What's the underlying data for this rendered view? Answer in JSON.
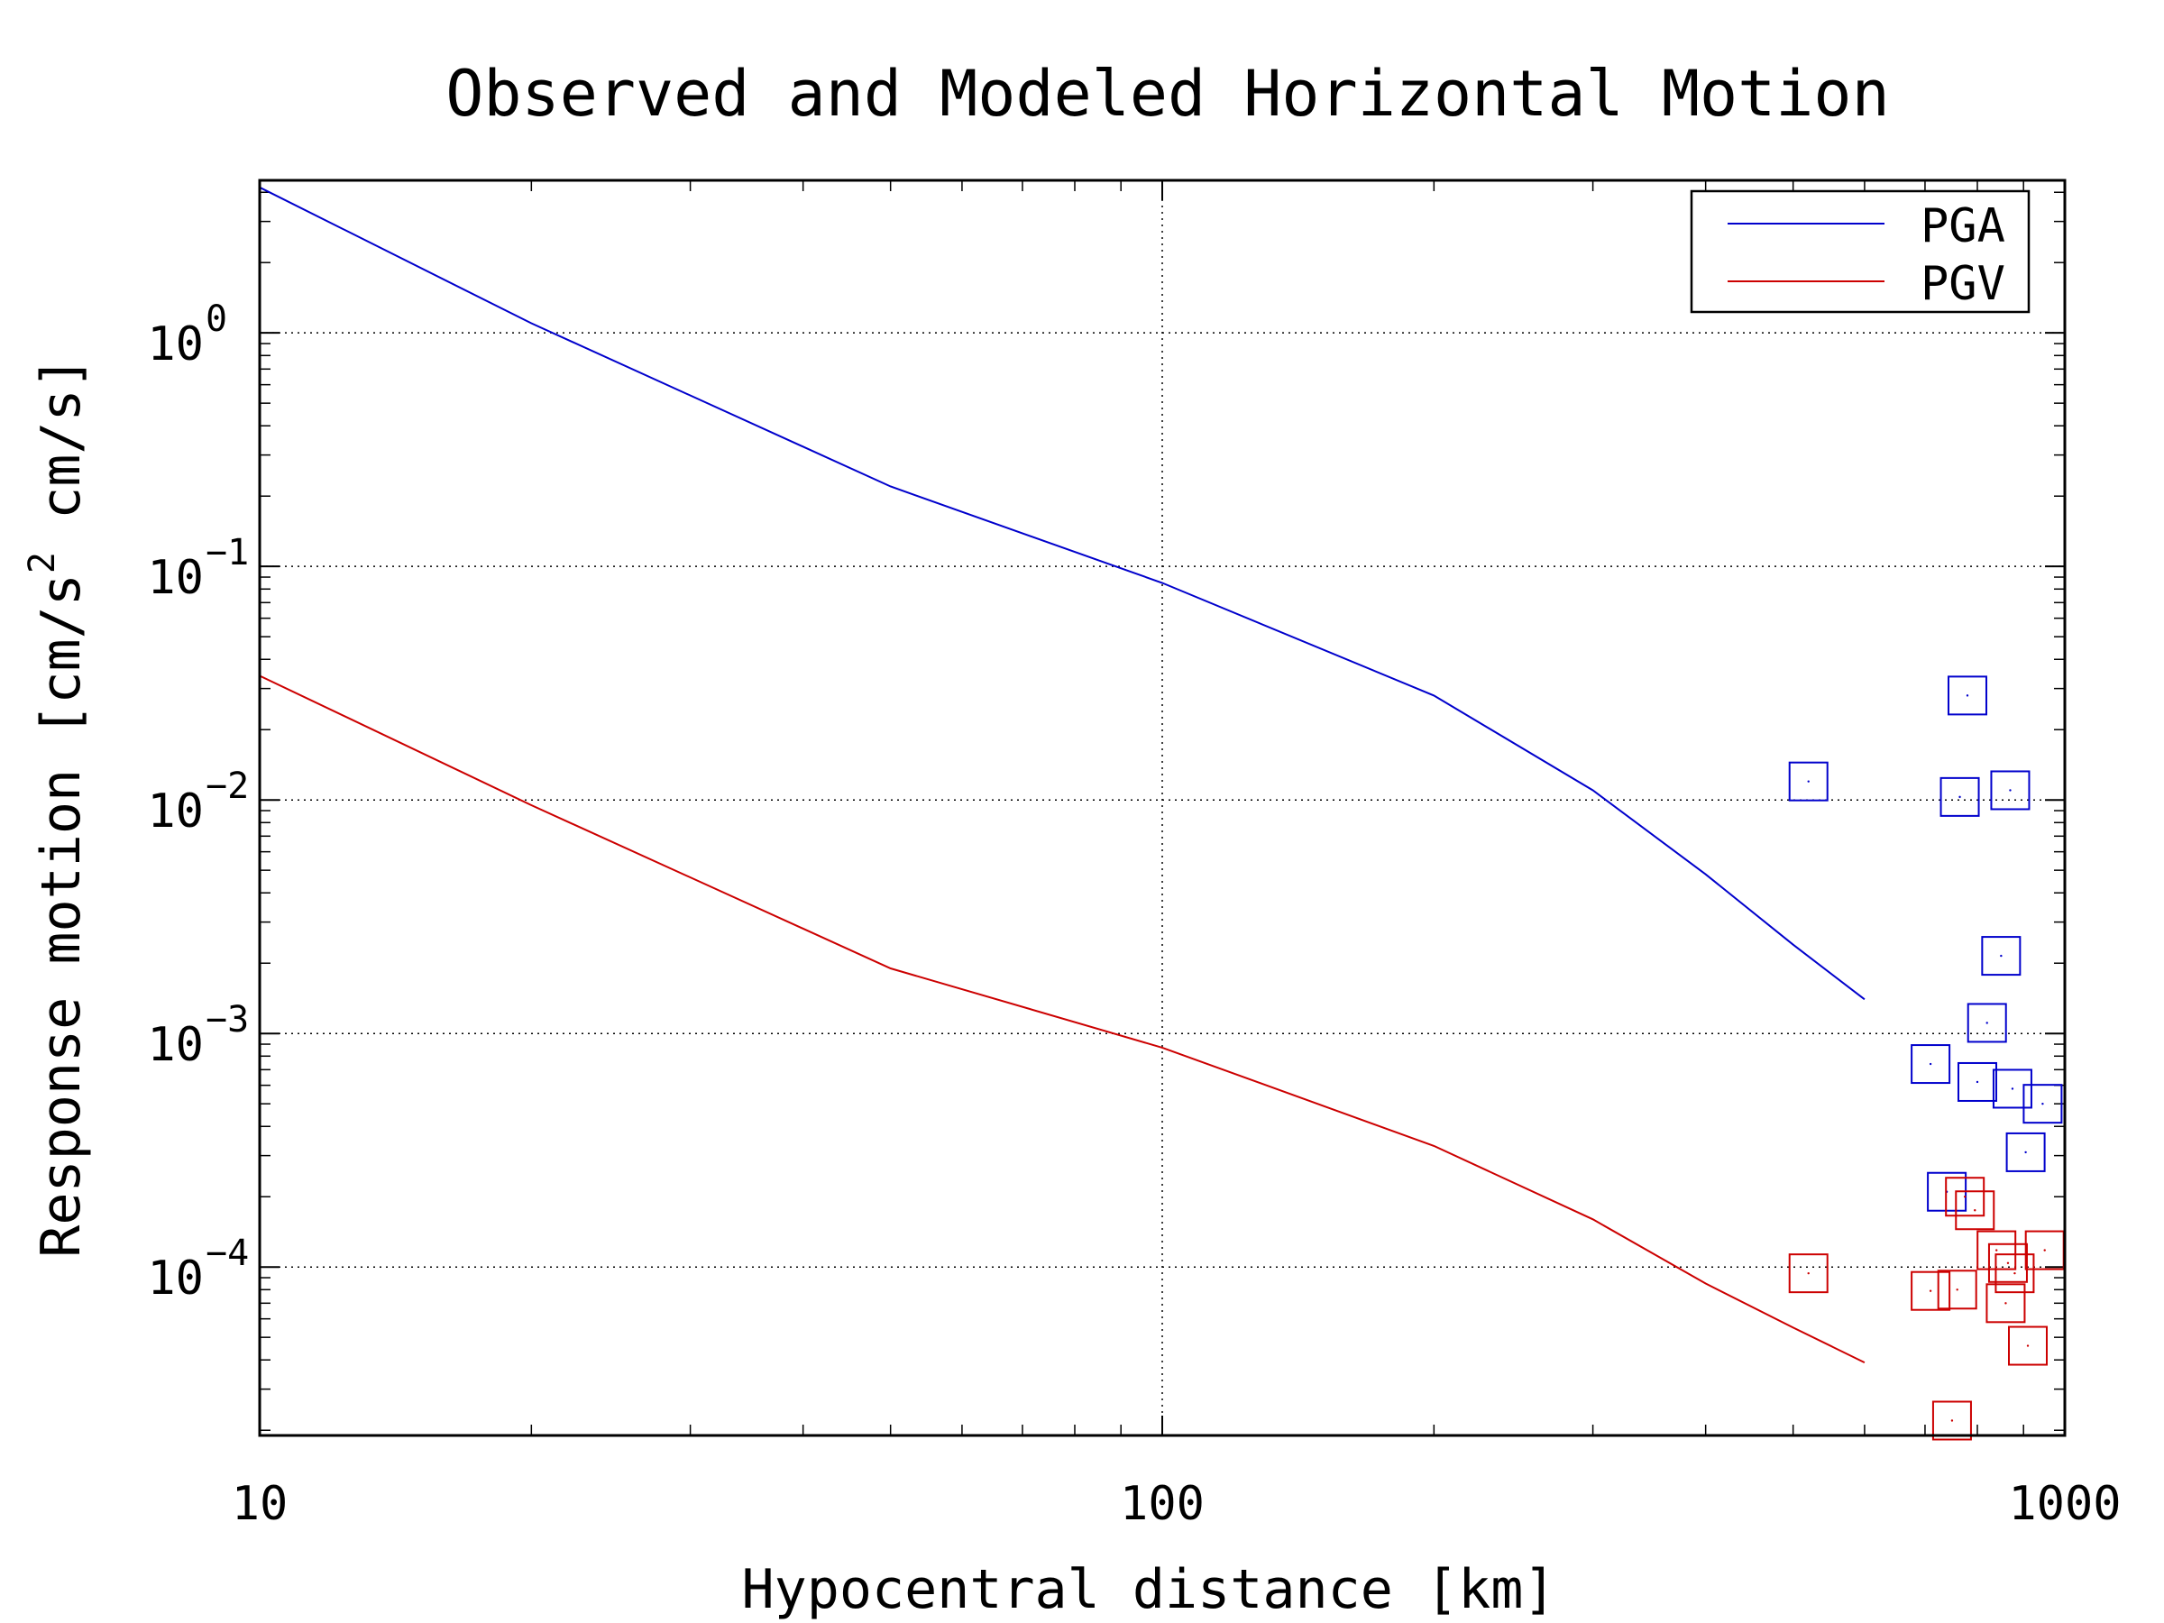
{
  "chart_data": {
    "type": "line",
    "title": "Observed and Modeled Horizontal Motion",
    "xlabel": "Hypocentral distance [km]",
    "ylabel": "Response motion [cm/s² cm/s]",
    "ylabel_parts": {
      "main": "Response motion [cm/s",
      "sup": "2",
      "tail": " cm/s]"
    },
    "x_scale": "log",
    "y_scale": "log",
    "xlim": [
      10,
      1000
    ],
    "ylim": [
      1.9e-05,
      4.5
    ],
    "x_ticks": [
      {
        "value": 10,
        "label": "10"
      },
      {
        "value": 100,
        "label": "100"
      },
      {
        "value": 1000,
        "label": "1000"
      }
    ],
    "y_ticks": [
      {
        "value": 1,
        "base": "10",
        "exp": "0"
      },
      {
        "value": 0.1,
        "base": "10",
        "exp": "−1"
      },
      {
        "value": 0.01,
        "base": "10",
        "exp": "−2"
      },
      {
        "value": 0.001,
        "base": "10",
        "exp": "−3"
      },
      {
        "value": 0.0001,
        "base": "10",
        "exp": "−4"
      }
    ],
    "grid": true,
    "legend_position": "top-right",
    "series": [
      {
        "name": "PGA",
        "color": "#0000cc",
        "kind": "line",
        "x": [
          10,
          20,
          50,
          100,
          200,
          300,
          400,
          500,
          600
        ],
        "y": [
          4.2,
          1.1,
          0.22,
          0.085,
          0.028,
          0.011,
          0.0048,
          0.0024,
          0.0014
        ]
      },
      {
        "name": "PGV",
        "color": "#cc0000",
        "kind": "line",
        "x": [
          10,
          20,
          50,
          100,
          200,
          300,
          400,
          500,
          600
        ],
        "y": [
          0.034,
          0.0095,
          0.0019,
          0.00087,
          0.00033,
          0.00016,
          8.5e-05,
          5.5e-05,
          3.9e-05
        ]
      },
      {
        "color": "#0000cc",
        "kind": "scatter",
        "marker": "square",
        "x": [
          520,
          780,
          765,
          870,
          850,
          820,
          710,
          800,
          875,
          945,
          905,
          740
        ],
        "y": [
          0.012,
          0.028,
          0.0103,
          0.011,
          0.00215,
          0.00111,
          0.00074,
          0.00062,
          0.00058,
          0.0005,
          0.00031,
          0.00021
        ]
      },
      {
        "color": "#cc0000",
        "kind": "scatter",
        "marker": "square",
        "x": [
          520,
          775,
          795,
          840,
          865,
          880,
          950,
          710,
          760,
          860,
          910,
          750
        ],
        "y": [
          9.4e-05,
          0.0002,
          0.000175,
          0.000118,
          0.000104,
          9.4e-05,
          0.000118,
          7.9e-05,
          8e-05,
          7e-05,
          4.6e-05,
          2.2e-05
        ]
      }
    ]
  }
}
